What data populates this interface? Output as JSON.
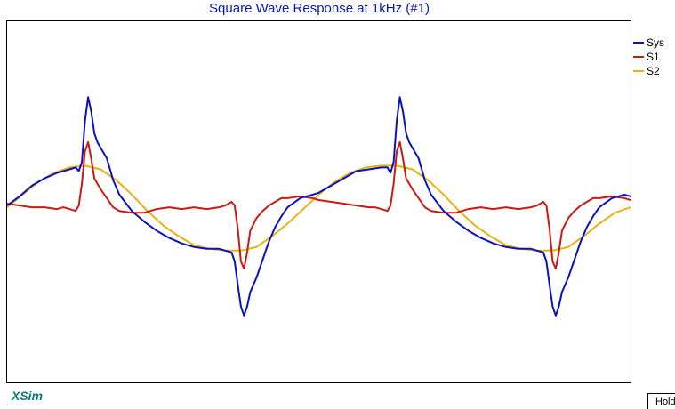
{
  "app": {
    "brand": "XSim",
    "hold_label": "Hold"
  },
  "chart_data": {
    "type": "line",
    "title": "Square Wave Response at 1kHz (#1)",
    "xlabel": "",
    "ylabel": "",
    "xlim": [
      0,
      2
    ],
    "ylim": [
      -1,
      1
    ],
    "grid": false,
    "legend": "top-right",
    "series": [
      {
        "name": "Sys",
        "color": "#0a12c0",
        "x": [
          0,
          0.04,
          0.08,
          0.12,
          0.16,
          0.2,
          0.22,
          0.23,
          0.24,
          0.25,
          0.26,
          0.27,
          0.28,
          0.29,
          0.3,
          0.32,
          0.34,
          0.36,
          0.4,
          0.44,
          0.48,
          0.52,
          0.56,
          0.6,
          0.64,
          0.68,
          0.7,
          0.72,
          0.73,
          0.74,
          0.75,
          0.76,
          0.77,
          0.78,
          0.79,
          0.8,
          0.82,
          0.84,
          0.86,
          0.88,
          0.9,
          0.94,
          0.98,
          1,
          1.04,
          1.08,
          1.12,
          1.16,
          1.2,
          1.22,
          1.23,
          1.24,
          1.25,
          1.26,
          1.27,
          1.28,
          1.29,
          1.3,
          1.32,
          1.34,
          1.36,
          1.4,
          1.44,
          1.48,
          1.52,
          1.56,
          1.6,
          1.64,
          1.68,
          1.7,
          1.72,
          1.73,
          1.74,
          1.75,
          1.76,
          1.77,
          1.78,
          1.79,
          1.8,
          1.82,
          1.84,
          1.86,
          1.88,
          1.9,
          1.94,
          1.98,
          2
        ],
        "y": [
          -0.02,
          0.03,
          0.09,
          0.13,
          0.16,
          0.18,
          0.19,
          0.17,
          0.22,
          0.45,
          0.58,
          0.5,
          0.38,
          0.33,
          0.3,
          0.24,
          0.12,
          0.04,
          -0.05,
          -0.11,
          -0.16,
          -0.2,
          -0.23,
          -0.25,
          -0.26,
          -0.26,
          -0.27,
          -0.28,
          -0.33,
          -0.46,
          -0.58,
          -0.63,
          -0.58,
          -0.5,
          -0.46,
          -0.42,
          -0.32,
          -0.22,
          -0.14,
          -0.08,
          -0.03,
          0.02,
          0.04,
          0.05,
          0.09,
          0.13,
          0.17,
          0.18,
          0.19,
          0.19,
          0.16,
          0.22,
          0.45,
          0.58,
          0.5,
          0.38,
          0.33,
          0.3,
          0.24,
          0.12,
          0.04,
          -0.05,
          -0.11,
          -0.16,
          -0.2,
          -0.23,
          -0.25,
          -0.26,
          -0.26,
          -0.27,
          -0.28,
          -0.33,
          -0.46,
          -0.58,
          -0.63,
          -0.58,
          -0.5,
          -0.46,
          -0.42,
          -0.32,
          -0.22,
          -0.14,
          -0.08,
          -0.03,
          0.02,
          0.04,
          0.03
        ]
      },
      {
        "name": "S1",
        "color": "#cc1a10",
        "x": [
          0,
          0.04,
          0.08,
          0.12,
          0.16,
          0.18,
          0.2,
          0.22,
          0.23,
          0.24,
          0.25,
          0.26,
          0.27,
          0.28,
          0.3,
          0.32,
          0.34,
          0.36,
          0.4,
          0.44,
          0.48,
          0.52,
          0.56,
          0.6,
          0.64,
          0.68,
          0.7,
          0.72,
          0.73,
          0.74,
          0.75,
          0.76,
          0.77,
          0.78,
          0.8,
          0.82,
          0.84,
          0.86,
          0.88,
          0.9,
          0.94,
          0.98,
          1,
          1.04,
          1.08,
          1.12,
          1.16,
          1.18,
          1.2,
          1.22,
          1.23,
          1.24,
          1.25,
          1.26,
          1.27,
          1.28,
          1.3,
          1.32,
          1.34,
          1.36,
          1.4,
          1.44,
          1.48,
          1.52,
          1.56,
          1.6,
          1.64,
          1.68,
          1.7,
          1.72,
          1.73,
          1.74,
          1.75,
          1.76,
          1.77,
          1.78,
          1.8,
          1.82,
          1.84,
          1.86,
          1.88,
          1.9,
          1.94,
          1.98,
          2
        ],
        "y": [
          -0.01,
          -0.02,
          -0.03,
          -0.03,
          -0.04,
          -0.03,
          -0.04,
          -0.05,
          -0.02,
          0.1,
          0.28,
          0.33,
          0.24,
          0.13,
          0.07,
          0.02,
          -0.03,
          -0.05,
          -0.06,
          -0.06,
          -0.04,
          -0.03,
          -0.04,
          -0.03,
          -0.04,
          -0.03,
          -0.02,
          0.0,
          -0.02,
          -0.15,
          -0.33,
          -0.37,
          -0.28,
          -0.16,
          -0.09,
          -0.05,
          -0.02,
          0.0,
          0.02,
          0.02,
          0.03,
          0.02,
          0.01,
          0.0,
          -0.01,
          -0.02,
          -0.03,
          -0.03,
          -0.04,
          -0.05,
          -0.02,
          0.1,
          0.28,
          0.33,
          0.24,
          0.13,
          0.07,
          0.02,
          -0.03,
          -0.05,
          -0.06,
          -0.06,
          -0.04,
          -0.03,
          -0.04,
          -0.03,
          -0.04,
          -0.03,
          -0.02,
          0.0,
          -0.02,
          -0.15,
          -0.33,
          -0.37,
          -0.28,
          -0.16,
          -0.09,
          -0.05,
          -0.02,
          0.0,
          0.02,
          0.02,
          0.03,
          0.02,
          0.01
        ]
      },
      {
        "name": "S2",
        "color": "#e8b210",
        "x": [
          0,
          0.05,
          0.1,
          0.15,
          0.2,
          0.25,
          0.3,
          0.35,
          0.4,
          0.45,
          0.5,
          0.55,
          0.6,
          0.65,
          0.7,
          0.75,
          0.8,
          0.85,
          0.9,
          0.95,
          1,
          1.05,
          1.1,
          1.15,
          1.2,
          1.25,
          1.3,
          1.35,
          1.4,
          1.45,
          1.5,
          1.55,
          1.6,
          1.65,
          1.7,
          1.75,
          1.8,
          1.85,
          1.9,
          1.95,
          2
        ],
        "y": [
          -0.03,
          0.04,
          0.11,
          0.16,
          0.19,
          0.2,
          0.18,
          0.12,
          0.04,
          -0.05,
          -0.13,
          -0.19,
          -0.24,
          -0.26,
          -0.27,
          -0.27,
          -0.25,
          -0.19,
          -0.12,
          -0.04,
          0.04,
          0.11,
          0.16,
          0.19,
          0.2,
          0.2,
          0.18,
          0.12,
          0.04,
          -0.05,
          -0.13,
          -0.19,
          -0.24,
          -0.26,
          -0.27,
          -0.27,
          -0.25,
          -0.19,
          -0.12,
          -0.06,
          -0.03
        ]
      }
    ]
  }
}
